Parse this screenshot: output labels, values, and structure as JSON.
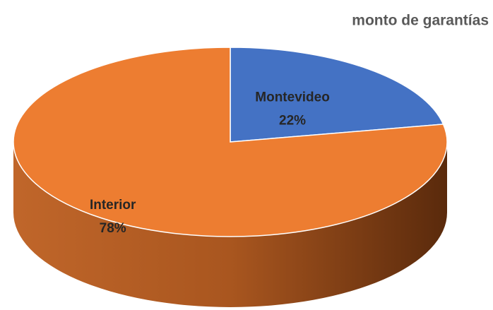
{
  "chart_data": {
    "type": "pie",
    "title": "monto de garantías",
    "categories": [
      "Montevideo",
      "Interior"
    ],
    "values": [
      22,
      78
    ],
    "value_labels": [
      "22%",
      "78%"
    ],
    "colors": [
      "#4472c4",
      "#ed7d31"
    ]
  }
}
